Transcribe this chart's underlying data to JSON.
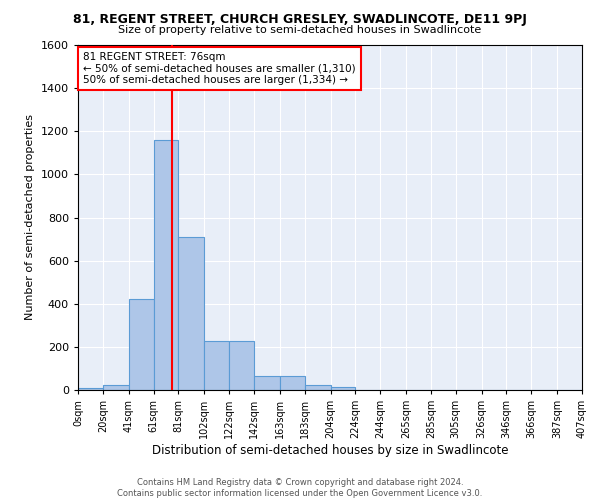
{
  "title_line1": "81, REGENT STREET, CHURCH GRESLEY, SWADLINCOTE, DE11 9PJ",
  "title_line2": "Size of property relative to semi-detached houses in Swadlincote",
  "xlabel": "Distribution of semi-detached houses by size in Swadlincote",
  "ylabel": "Number of semi-detached properties",
  "footnote": "Contains HM Land Registry data © Crown copyright and database right 2024.\nContains public sector information licensed under the Open Government Licence v3.0.",
  "bin_edges": [
    0,
    20,
    41,
    61,
    81,
    102,
    122,
    142,
    163,
    183,
    204,
    224,
    244,
    265,
    285,
    305,
    326,
    346,
    366,
    387,
    407
  ],
  "bin_labels": [
    "0sqm",
    "20sqm",
    "41sqm",
    "61sqm",
    "81sqm",
    "102sqm",
    "122sqm",
    "142sqm",
    "163sqm",
    "183sqm",
    "204sqm",
    "224sqm",
    "244sqm",
    "265sqm",
    "285sqm",
    "305sqm",
    "326sqm",
    "346sqm",
    "366sqm",
    "387sqm",
    "407sqm"
  ],
  "counts": [
    10,
    25,
    420,
    1160,
    710,
    225,
    225,
    65,
    65,
    25,
    15,
    0,
    0,
    0,
    0,
    0,
    0,
    0,
    0,
    0
  ],
  "ylim": [
    0,
    1600
  ],
  "yticks": [
    0,
    200,
    400,
    600,
    800,
    1000,
    1200,
    1400,
    1600
  ],
  "property_size": 76,
  "annotation_text": "81 REGENT STREET: 76sqm\n← 50% of semi-detached houses are smaller (1,310)\n50% of semi-detached houses are larger (1,334) →",
  "bar_color": "#aec6e8",
  "bar_edge_color": "#5b9bd5",
  "line_color": "red",
  "plot_bg_color": "#e8eef8",
  "fig_bg_color": "#ffffff",
  "grid_color": "#ffffff",
  "annotation_box_color": "#ffffff",
  "annotation_box_edge": "red"
}
